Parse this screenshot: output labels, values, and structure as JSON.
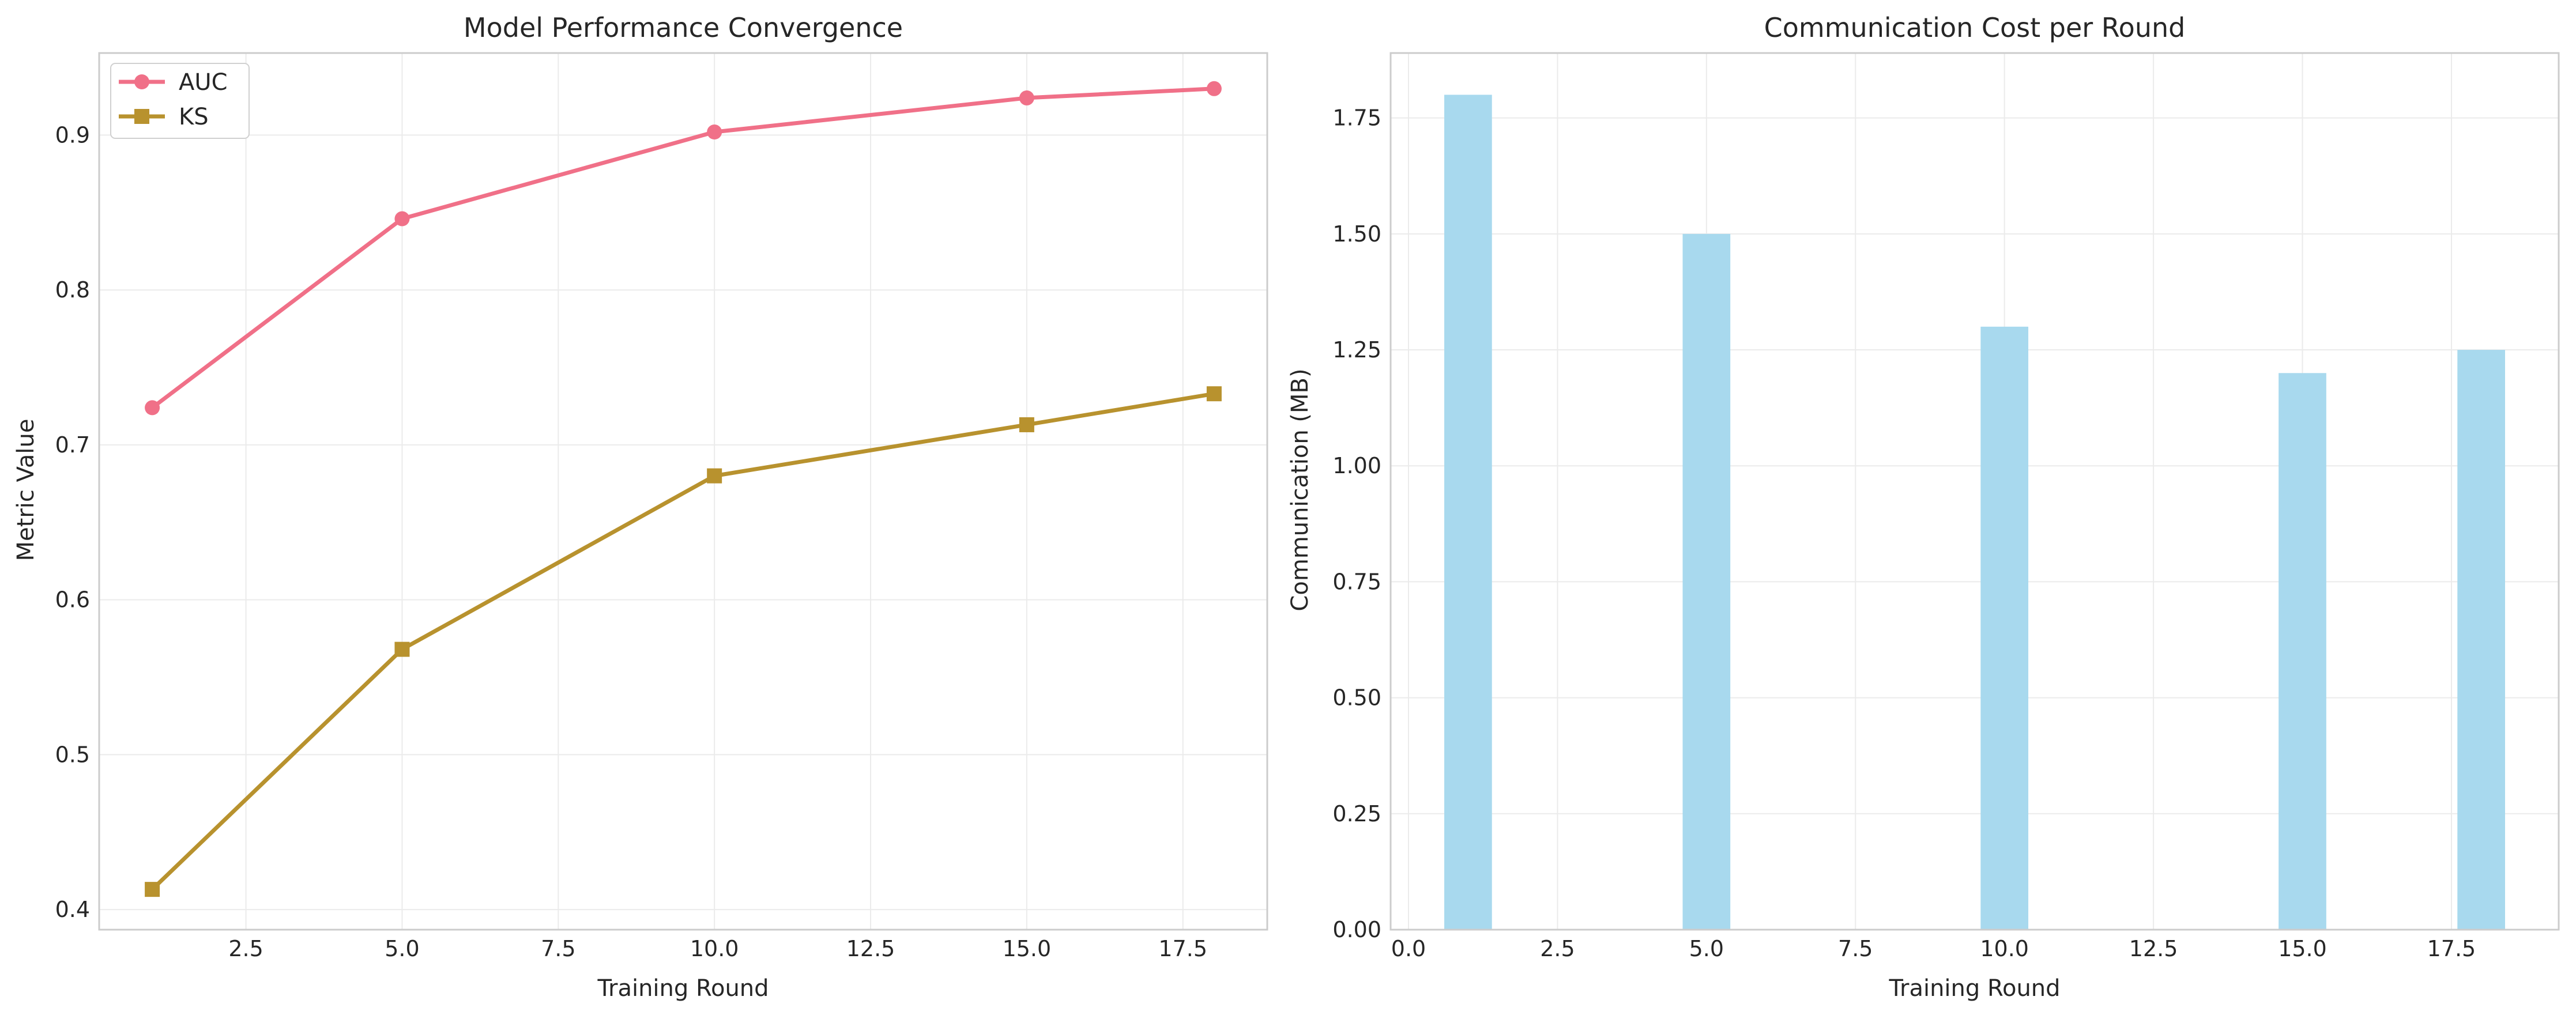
{
  "chart_data": [
    {
      "type": "line",
      "title": "Model Performance Convergence",
      "xlabel": "Training Round",
      "ylabel": "Metric Value",
      "xlim": [
        0.15,
        18.85
      ],
      "ylim": [
        0.387,
        0.953
      ],
      "xticks": [
        "2.5",
        "5.0",
        "7.5",
        "10.0",
        "12.5",
        "15.0",
        "17.5"
      ],
      "yticks": [
        "0.4",
        "0.5",
        "0.6",
        "0.7",
        "0.8",
        "0.9"
      ],
      "x": [
        1,
        5,
        10,
        15,
        18
      ],
      "series": [
        {
          "name": "AUC",
          "marker": "circle",
          "color": "#f07088",
          "values": [
            0.724,
            0.846,
            0.902,
            0.924,
            0.93
          ]
        },
        {
          "name": "KS",
          "marker": "square",
          "color": "#b8922e",
          "values": [
            0.413,
            0.568,
            0.68,
            0.713,
            0.733
          ]
        }
      ],
      "grid": true,
      "legend": "top-left"
    },
    {
      "type": "bar",
      "title": "Communication Cost per Round",
      "xlabel": "Training Round",
      "ylabel": "Communication (MB)",
      "xlim": [
        -0.3,
        19.3
      ],
      "ylim": [
        0,
        1.89
      ],
      "xticks": [
        "0.0",
        "2.5",
        "5.0",
        "7.5",
        "10.0",
        "12.5",
        "15.0",
        "17.5"
      ],
      "yticks": [
        "0.00",
        "0.25",
        "0.50",
        "0.75",
        "1.00",
        "1.25",
        "1.50",
        "1.75"
      ],
      "x": [
        1,
        5,
        10,
        15,
        18
      ],
      "bar_width": 0.8,
      "values": [
        1.8,
        1.5,
        1.3,
        1.2,
        1.25
      ],
      "color": "#a8d9ee",
      "grid": true
    }
  ]
}
